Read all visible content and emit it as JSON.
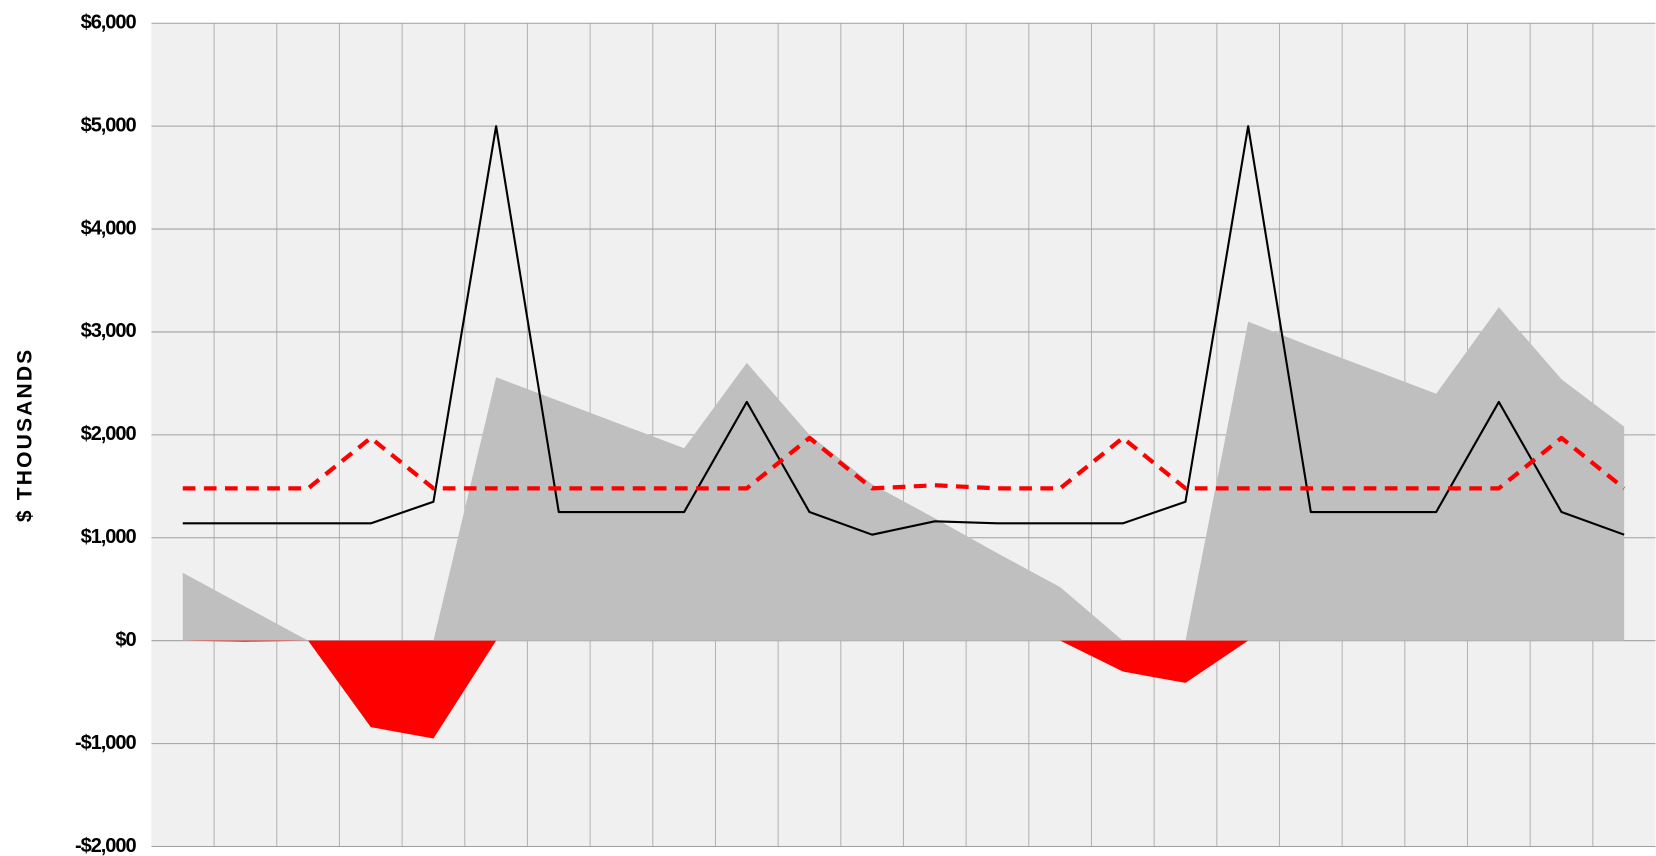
{
  "chart_data": {
    "type": "line",
    "y_label": "$ THOUSANDS",
    "categories": [
      null,
      null,
      null,
      null,
      null,
      null,
      null,
      null,
      null,
      null,
      null,
      null,
      null,
      null,
      null,
      null,
      null,
      null,
      null,
      null,
      null,
      null,
      null,
      null
    ],
    "ylim": [
      -2000,
      6000
    ],
    "yticks": [
      {
        "value": -2000,
        "label": "-$2,000"
      },
      {
        "value": -1000,
        "label": "-$1,000"
      },
      {
        "value": 0,
        "label": "$0"
      },
      {
        "value": 1000,
        "label": "$1,000"
      },
      {
        "value": 2000,
        "label": "$2,000"
      },
      {
        "value": 3000,
        "label": "$3,000"
      },
      {
        "value": 4000,
        "label": "$4,000"
      },
      {
        "value": 5000,
        "label": "$5,000"
      },
      {
        "value": 6000,
        "label": "$6,000"
      }
    ],
    "grid": true,
    "series": [
      {
        "type": "area",
        "color": "#bfbfbf",
        "values": [
          660,
          330,
          0,
          0,
          0,
          2560,
          2330,
          2100,
          1870,
          2700,
          2000,
          1520,
          1190,
          850,
          520,
          0,
          0,
          3100,
          2860,
          2630,
          2400,
          3240,
          2540,
          2080
        ]
      },
      {
        "type": "area",
        "color": "#ff0000",
        "values": [
          0,
          -10,
          0,
          -840,
          -950,
          0,
          0,
          0,
          0,
          0,
          0,
          0,
          0,
          0,
          0,
          -300,
          -410,
          0,
          0,
          0,
          0,
          0,
          0,
          0
        ]
      },
      {
        "type": "line",
        "color": "#000000",
        "dashed": false,
        "values": [
          1140,
          1140,
          1140,
          1140,
          1350,
          5000,
          1250,
          1250,
          1250,
          2320,
          1250,
          1030,
          1160,
          1140,
          1140,
          1140,
          1350,
          5000,
          1250,
          1250,
          1250,
          2320,
          1250,
          1030
        ]
      },
      {
        "type": "line",
        "color": "#ff0000",
        "dashed": true,
        "values": [
          1480,
          1480,
          1480,
          1970,
          1480,
          1480,
          1480,
          1480,
          1480,
          1480,
          1970,
          1480,
          1510,
          1480,
          1480,
          1970,
          1480,
          1480,
          1480,
          1480,
          1480,
          1480,
          1970,
          1480
        ]
      }
    ]
  }
}
